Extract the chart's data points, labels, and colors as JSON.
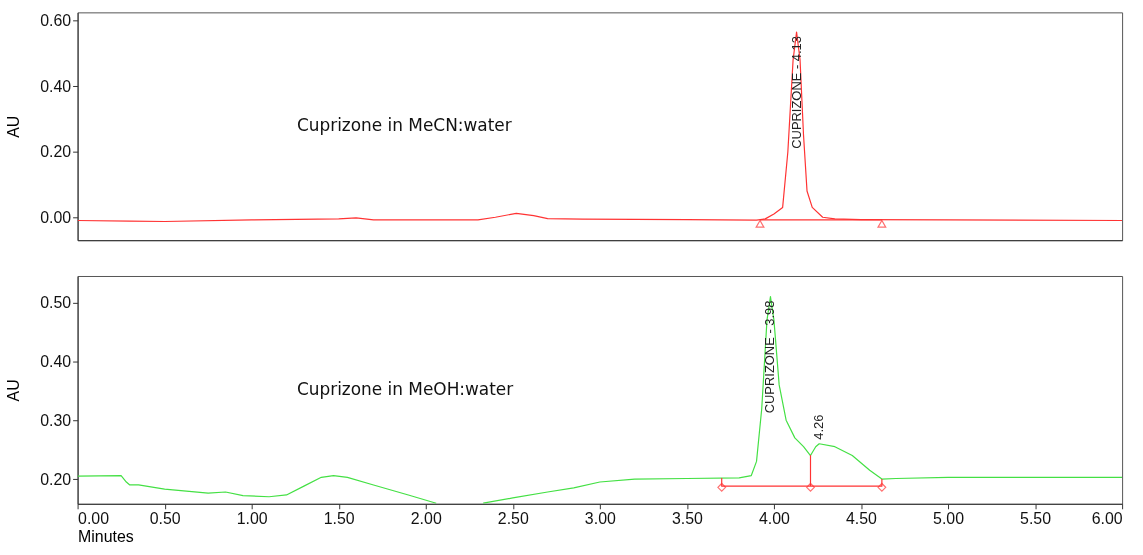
{
  "chart_data": [
    {
      "type": "line",
      "ylabel": "AU",
      "tick_labels": "y",
      "grid": false,
      "xlim": [
        0,
        6
      ],
      "ylim": [
        -0.07,
        0.625
      ],
      "yticks": [
        {
          "value": 0,
          "label": "0.00"
        },
        {
          "value": 0.2,
          "label": "0.20"
        },
        {
          "value": 0.4,
          "label": "0.40"
        },
        {
          "value": 0.6,
          "label": "0.60"
        }
      ],
      "annotations": [
        "Cuprizone in MeCN:water",
        {
          "text": "CUPRIZONE - 4.13",
          "x": 4.13,
          "y": 0.565
        }
      ],
      "series": [
        {
          "color": "#ff3333",
          "x": [
            0,
            0.3,
            0.5,
            1.0,
            1.5,
            1.6,
            1.7,
            2.0,
            2.3,
            2.4,
            2.52,
            2.62,
            2.7,
            2.9,
            3.5,
            3.9,
            3.95,
            4.0,
            4.05,
            4.08,
            4.11,
            4.13,
            4.15,
            4.17,
            4.19,
            4.22,
            4.28,
            4.35,
            4.5,
            5.0,
            6.0
          ],
          "values": [
            -0.01,
            -0.012,
            -0.013,
            -0.008,
            -0.005,
            -0.002,
            -0.008,
            -0.008,
            -0.008,
            0.0,
            0.012,
            0.005,
            -0.004,
            -0.006,
            -0.007,
            -0.009,
            -0.005,
            0.01,
            0.03,
            0.2,
            0.48,
            0.565,
            0.48,
            0.25,
            0.08,
            0.03,
            0.0,
            -0.005,
            -0.007,
            -0.008,
            -0.01
          ]
        },
        {
          "color": "#ff3333",
          "x": [
            3.92,
            4.62
          ],
          "values": [
            -0.008,
            -0.008
          ]
        },
        {
          "type": "scatter",
          "marker": "triangle",
          "color": "#ff3333",
          "x": [
            3.92,
            4.62
          ],
          "values": [
            -0.02,
            -0.02
          ]
        }
      ]
    },
    {
      "type": "line",
      "ylabel": "AU",
      "xlabel": "Minutes",
      "grid": false,
      "xlim": [
        0,
        6
      ],
      "ylim": [
        0.158,
        0.545
      ],
      "xticks": [
        {
          "value": 0,
          "label": "0.00"
        },
        {
          "value": 0.5,
          "label": "0.50"
        },
        {
          "value": 1,
          "label": "1.00"
        },
        {
          "value": 1.5,
          "label": "1.50"
        },
        {
          "value": 2,
          "label": "2.00"
        },
        {
          "value": 2.5,
          "label": "2.50"
        },
        {
          "value": 3,
          "label": "3.00"
        },
        {
          "value": 3.5,
          "label": "3.50"
        },
        {
          "value": 4,
          "label": "4.00"
        },
        {
          "value": 4.5,
          "label": "4.50"
        },
        {
          "value": 5,
          "label": "5.00"
        },
        {
          "value": 5.5,
          "label": "5.50"
        },
        {
          "value": 6,
          "label": "6.00"
        }
      ],
      "yticks": [
        {
          "value": 0.2,
          "label": "0.20"
        },
        {
          "value": 0.3,
          "label": "0.30"
        },
        {
          "value": 0.4,
          "label": "0.40"
        },
        {
          "value": 0.5,
          "label": "0.50"
        }
      ],
      "annotations": [
        "Cuprizone in MeOH:water",
        {
          "text": "CUPRIZONE - 3.98",
          "x": 3.98,
          "y": 0.51
        },
        {
          "text": "4.26",
          "x": 4.26,
          "y": 0.26
        }
      ],
      "series": [
        {
          "color": "#44e044",
          "x": [
            0,
            0.25,
            0.28,
            0.3,
            0.35,
            0.5,
            0.75,
            0.85,
            0.95,
            1.1,
            1.2,
            1.3,
            1.4,
            1.47,
            1.55,
            1.7,
            1.9,
            2.06,
            2.2,
            2.33,
            2.5,
            2.7,
            2.85,
            3.0,
            3.2,
            3.5,
            3.8,
            3.87,
            3.9,
            3.93,
            3.96,
            3.98,
            4.0,
            4.03,
            4.07,
            4.12,
            4.17,
            4.21,
            4.24,
            4.26,
            4.35,
            4.45,
            4.55,
            4.62,
            4.7,
            5.0,
            6.0
          ],
          "values": [
            0.205,
            0.206,
            0.195,
            0.19,
            0.19,
            0.183,
            0.176,
            0.178,
            0.172,
            0.17,
            0.173,
            0.188,
            0.203,
            0.206,
            0.203,
            0.19,
            0.173,
            0.159,
            null,
            0.159,
            0.168,
            0.178,
            0.185,
            0.195,
            0.2,
            0.201,
            0.202,
            0.206,
            0.23,
            0.32,
            0.47,
            0.51,
            0.47,
            0.36,
            0.3,
            0.27,
            0.255,
            0.24,
            0.255,
            0.26,
            0.255,
            0.24,
            0.215,
            0.2,
            0.201,
            0.203,
            0.203
          ]
        },
        {
          "color": "#ff3333",
          "x": [
            3.7,
            3.7,
            4.21,
            4.21,
            4.21,
            4.62,
            4.62
          ],
          "values": [
            0.202,
            0.188,
            0.188,
            0.24,
            0.188,
            0.188,
            0.2
          ]
        },
        {
          "type": "scatter",
          "marker": "diamond",
          "color": "#ff3333",
          "x": [
            3.7,
            4.21,
            4.62
          ],
          "values": [
            0.186,
            0.186,
            0.186
          ]
        }
      ]
    }
  ]
}
